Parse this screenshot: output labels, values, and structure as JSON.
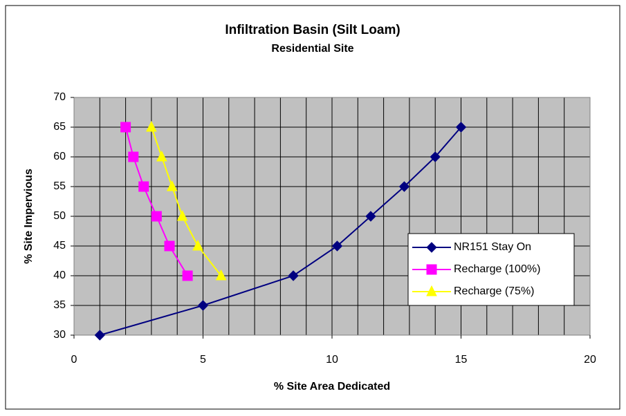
{
  "chart_data": {
    "type": "line",
    "title": "Infiltration Basin (Silt Loam)",
    "subtitle": "Residential Site",
    "x_label": "% Site Area Dedicated",
    "y_label": "% Site Impervious",
    "xlim": [
      0,
      20
    ],
    "ylim": [
      30,
      70
    ],
    "xticks": [
      0,
      5,
      10,
      15,
      20
    ],
    "yticks": [
      30,
      35,
      40,
      45,
      50,
      55,
      60,
      65,
      70
    ],
    "xgrid": [
      0,
      1,
      2,
      3,
      4,
      5,
      6,
      7,
      8,
      9,
      10,
      11,
      12,
      13,
      14,
      15,
      16,
      17,
      18,
      19,
      20
    ],
    "grid": true,
    "legend": "right",
    "series": [
      {
        "name": "NR151 Stay On",
        "color": "#000080",
        "marker": "diamond",
        "x": [
          1,
          5,
          8.5,
          10.2,
          11.5,
          12.8,
          14,
          15
        ],
        "values": [
          30,
          35,
          40,
          45,
          50,
          55,
          60,
          65
        ]
      },
      {
        "name": "Recharge (100%)",
        "color": "#ff00ff",
        "marker": "square",
        "x": [
          2.0,
          2.3,
          2.7,
          3.2,
          3.7,
          4.4
        ],
        "values": [
          65,
          60,
          55,
          50,
          45,
          40
        ]
      },
      {
        "name": "Recharge (75%)",
        "color": "#ffff00",
        "marker": "triangle",
        "x": [
          3.0,
          3.4,
          3.8,
          4.2,
          4.8,
          5.7
        ],
        "values": [
          65,
          60,
          55,
          50,
          45,
          40
        ]
      }
    ]
  }
}
